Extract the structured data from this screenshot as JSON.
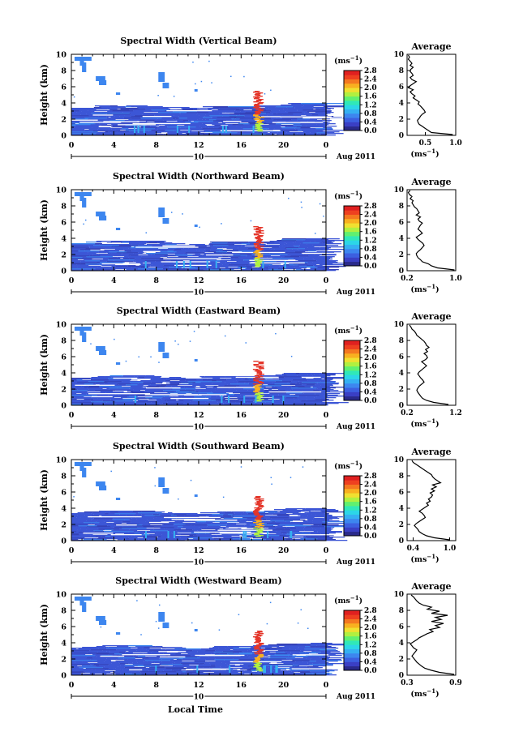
{
  "figure": {
    "xlabel": "Local Time",
    "date_label": "Aug 2011",
    "day_marker": "10",
    "colorbar_unit": "(ms",
    "colorbar_exp": "−1",
    "avg_title": "Average",
    "avg_unit": "(ms",
    "avg_unit_exp": "−1",
    "avg_unit_close": ")"
  },
  "colors": {
    "scale": [
      "#2a2a8a",
      "#3a3fc4",
      "#3c5fe0",
      "#3d86ef",
      "#35b0f2",
      "#2cd6e8",
      "#30e8b8",
      "#60f070",
      "#b0f040",
      "#f0e030",
      "#f8b020",
      "#f47820",
      "#ee4020",
      "#e02020"
    ],
    "cloud_main": "#3d56d6",
    "cloud_dark": "#3442b8",
    "plume": "#e4362a"
  },
  "chart_data": [
    {
      "type": "heatmap",
      "title": "Spectral Width (Vertical Beam)",
      "ylabel": "Height (km)",
      "x_ticks": [
        "0",
        "4",
        "8",
        "12",
        "16",
        "20",
        "0"
      ],
      "y_ticks": [
        "0",
        "2",
        "4",
        "6",
        "8",
        "10"
      ],
      "xlim": [
        0,
        24
      ],
      "ylim": [
        0,
        10
      ],
      "colorbar_ticks": [
        "0.0",
        "0.4",
        "0.8",
        "1.2",
        "1.6",
        "2.0",
        "2.4",
        "2.8"
      ],
      "colorbar_range": [
        0,
        2.8
      ],
      "average_profile": {
        "x_ticks": [
          "0.5",
          "1.0"
        ],
        "xlim": [
          0.2,
          1.0
        ],
        "y_ticks": [
          "0",
          "2",
          "4",
          "6",
          "8",
          "10"
        ],
        "values": [
          0.95,
          0.6,
          0.55,
          0.5,
          0.45,
          0.4,
          0.38,
          0.37,
          0.4,
          0.42,
          0.45,
          0.5,
          0.48,
          0.45,
          0.42,
          0.38,
          0.4,
          0.35,
          0.3,
          0.33,
          0.28,
          0.25,
          0.3,
          0.22,
          0.25,
          0.3,
          0.35,
          0.28,
          0.25,
          0.3,
          0.28,
          0.25,
          0.26,
          0.3,
          0.25,
          0.28,
          0.25,
          0.22,
          0.24,
          0.22
        ]
      }
    },
    {
      "type": "heatmap",
      "title": "Spectral Width (Northward Beam)",
      "ylabel": "Height (km)",
      "x_ticks": [
        "0",
        "4",
        "8",
        "12",
        "16",
        "20",
        "0"
      ],
      "y_ticks": [
        "0",
        "2",
        "4",
        "6",
        "8",
        "10"
      ],
      "xlim": [
        0,
        24
      ],
      "ylim": [
        0,
        10
      ],
      "colorbar_ticks": [
        "0.0",
        "0.4",
        "0.8",
        "1.2",
        "1.6",
        "2.0",
        "2.4",
        "2.8"
      ],
      "colorbar_range": [
        0,
        2.8
      ],
      "average_profile": {
        "x_ticks": [
          "0.2",
          "1.0"
        ],
        "xlim": [
          0.2,
          1.0
        ],
        "y_ticks": [
          "0",
          "2",
          "4",
          "6",
          "8",
          "10"
        ],
        "values": [
          0.98,
          0.7,
          0.6,
          0.55,
          0.45,
          0.42,
          0.38,
          0.36,
          0.35,
          0.38,
          0.42,
          0.45,
          0.48,
          0.46,
          0.42,
          0.38,
          0.35,
          0.4,
          0.45,
          0.42,
          0.38,
          0.4,
          0.42,
          0.45,
          0.4,
          0.38,
          0.42,
          0.35,
          0.4,
          0.38,
          0.36,
          0.32,
          0.3,
          0.28,
          0.3,
          0.25,
          0.28,
          0.24,
          0.22,
          0.25
        ]
      }
    },
    {
      "type": "heatmap",
      "title": "Spectral Width (Eastward Beam)",
      "ylabel": "Height (km)",
      "x_ticks": [
        "0",
        "4",
        "8",
        "12",
        "16",
        "20",
        "0"
      ],
      "y_ticks": [
        "0",
        "2",
        "4",
        "6",
        "8",
        "10"
      ],
      "xlim": [
        0,
        24
      ],
      "ylim": [
        0,
        10
      ],
      "colorbar_ticks": [
        "0.0",
        "0.4",
        "0.8",
        "1.2",
        "1.6",
        "2.0",
        "2.4",
        "2.8"
      ],
      "colorbar_range": [
        0,
        2.8
      ],
      "average_profile": {
        "x_ticks": [
          "0.2",
          "1.2"
        ],
        "xlim": [
          0.2,
          1.2
        ],
        "y_ticks": [
          "0",
          "2",
          "4",
          "6",
          "8",
          "10"
        ],
        "values": [
          1.05,
          0.75,
          0.6,
          0.52,
          0.48,
          0.45,
          0.42,
          0.4,
          0.42,
          0.45,
          0.5,
          0.55,
          0.52,
          0.48,
          0.45,
          0.42,
          0.45,
          0.5,
          0.55,
          0.6,
          0.55,
          0.5,
          0.58,
          0.62,
          0.6,
          0.55,
          0.62,
          0.58,
          0.65,
          0.6,
          0.58,
          0.55,
          0.5,
          0.45,
          0.4,
          0.38,
          0.35,
          0.3,
          0.28,
          0.25
        ]
      }
    },
    {
      "type": "heatmap",
      "title": "Spectral Width (Southward Beam)",
      "ylabel": "Height (km)",
      "x_ticks": [
        "0",
        "4",
        "8",
        "12",
        "16",
        "20",
        "0"
      ],
      "y_ticks": [
        "0",
        "2",
        "4",
        "6",
        "8",
        "10"
      ],
      "xlim": [
        0,
        24
      ],
      "ylim": [
        0,
        10
      ],
      "colorbar_ticks": [
        "0.0",
        "0.4",
        "0.8",
        "1.2",
        "1.6",
        "2.0",
        "2.4",
        "2.8"
      ],
      "colorbar_range": [
        0,
        2.8
      ],
      "average_profile": {
        "x_ticks": [
          "0.4",
          "1.0"
        ],
        "xlim": [
          0.3,
          1.1
        ],
        "y_ticks": [
          "0",
          "2",
          "4",
          "6",
          "8",
          "10"
        ],
        "values": [
          1.0,
          0.75,
          0.62,
          0.55,
          0.5,
          0.48,
          0.45,
          0.42,
          0.45,
          0.5,
          0.55,
          0.6,
          0.58,
          0.55,
          0.5,
          0.55,
          0.6,
          0.65,
          0.62,
          0.68,
          0.65,
          0.7,
          0.72,
          0.68,
          0.75,
          0.7,
          0.78,
          0.72,
          0.85,
          0.8,
          0.75,
          0.72,
          0.7,
          0.65,
          0.6,
          0.55,
          0.5,
          0.45,
          0.4,
          0.38
        ]
      }
    },
    {
      "type": "heatmap",
      "title": "Spectral Width (Westward Beam)",
      "ylabel": "Height (km)",
      "x_ticks": [
        "0",
        "4",
        "8",
        "12",
        "16",
        "20",
        "0"
      ],
      "y_ticks": [
        "0",
        "2",
        "4",
        "6",
        "8",
        "10"
      ],
      "xlim": [
        0,
        24
      ],
      "ylim": [
        0,
        10
      ],
      "colorbar_ticks": [
        "0.0",
        "0.4",
        "0.8",
        "1.2",
        "1.6",
        "2.0",
        "2.4",
        "2.8"
      ],
      "colorbar_range": [
        0,
        2.8
      ],
      "average_profile": {
        "x_ticks": [
          "0.3",
          "0.9"
        ],
        "xlim": [
          0.3,
          0.9
        ],
        "y_ticks": [
          "0",
          "2",
          "4",
          "6",
          "8",
          "10"
        ],
        "values": [
          0.88,
          0.7,
          0.6,
          0.52,
          0.48,
          0.45,
          0.42,
          0.4,
          0.38,
          0.36,
          0.38,
          0.4,
          0.42,
          0.38,
          0.36,
          0.34,
          0.38,
          0.42,
          0.45,
          0.5,
          0.55,
          0.62,
          0.58,
          0.7,
          0.65,
          0.75,
          0.6,
          0.72,
          0.65,
          0.8,
          0.6,
          0.7,
          0.55,
          0.6,
          0.5,
          0.45,
          0.42,
          0.4,
          0.38,
          0.35
        ]
      }
    }
  ]
}
